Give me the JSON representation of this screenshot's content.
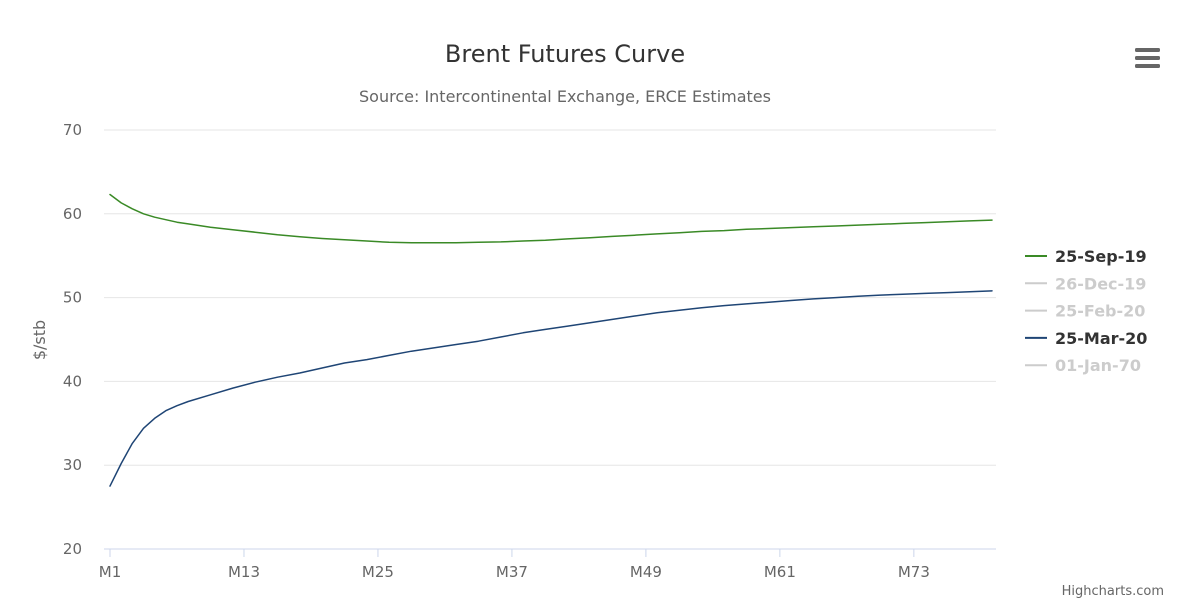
{
  "chart_data": {
    "type": "line",
    "title": "Brent Futures Curve",
    "subtitle": "Source: Intercontinental Exchange, ERCE Estimates",
    "xlabel": "",
    "ylabel": "$/stb",
    "x_tick_labels": [
      "M1",
      "M13",
      "M25",
      "M37",
      "M49",
      "M61",
      "M73"
    ],
    "x_range": [
      1,
      80
    ],
    "ylim": [
      20,
      70
    ],
    "y_ticks": [
      20,
      30,
      40,
      50,
      60,
      70
    ],
    "grid": true,
    "legend_position": "right",
    "series": [
      {
        "name": "25-Sep-19",
        "color": "#3a8a26",
        "visible": true,
        "x": [
          1,
          2,
          3,
          4,
          5,
          6,
          7,
          8,
          10,
          12,
          14,
          16,
          18,
          20,
          22,
          24,
          26,
          28,
          30,
          32,
          34,
          36,
          38,
          40,
          42,
          44,
          46,
          48,
          50,
          52,
          54,
          56,
          58,
          60,
          62,
          64,
          66,
          68,
          70,
          72,
          74,
          76,
          78,
          80
        ],
        "values": [
          62.3,
          61.3,
          60.6,
          60.0,
          59.6,
          59.3,
          59.0,
          58.8,
          58.4,
          58.1,
          57.8,
          57.5,
          57.25,
          57.05,
          56.9,
          56.75,
          56.6,
          56.55,
          56.55,
          56.55,
          56.6,
          56.65,
          56.75,
          56.85,
          57.0,
          57.15,
          57.3,
          57.45,
          57.6,
          57.75,
          57.9,
          58.0,
          58.15,
          58.25,
          58.35,
          58.45,
          58.55,
          58.65,
          58.75,
          58.85,
          58.95,
          59.05,
          59.15,
          59.25
        ]
      },
      {
        "name": "26-Dec-19",
        "color": "#cccccc",
        "visible": false
      },
      {
        "name": "25-Feb-20",
        "color": "#cccccc",
        "visible": false
      },
      {
        "name": "25-Mar-20",
        "color": "#1f4575",
        "visible": true,
        "x": [
          1,
          2,
          3,
          4,
          5,
          6,
          7,
          8,
          10,
          12,
          14,
          16,
          18,
          20,
          22,
          24,
          26,
          28,
          30,
          32,
          34,
          36,
          38,
          40,
          42,
          44,
          46,
          48,
          50,
          52,
          54,
          56,
          58,
          60,
          62,
          64,
          66,
          68,
          70,
          72,
          74,
          76,
          78,
          80
        ],
        "values": [
          27.5,
          30.2,
          32.6,
          34.4,
          35.6,
          36.5,
          37.1,
          37.6,
          38.4,
          39.2,
          39.9,
          40.5,
          41.0,
          41.6,
          42.2,
          42.6,
          43.1,
          43.6,
          44.0,
          44.4,
          44.8,
          45.3,
          45.8,
          46.2,
          46.6,
          47.0,
          47.4,
          47.8,
          48.2,
          48.5,
          48.8,
          49.05,
          49.25,
          49.45,
          49.65,
          49.85,
          50.0,
          50.15,
          50.3,
          50.4,
          50.5,
          50.6,
          50.7,
          50.8
        ]
      },
      {
        "name": "01-Jan-70",
        "color": "#cccccc",
        "visible": false
      }
    ]
  },
  "credits": "Highcharts.com",
  "menu_icon": "hamburger-menu-icon",
  "colors": {
    "grid": "#e6e6e6",
    "axis_line": "#ccd6eb",
    "axis_text": "#666666",
    "title": "#333333"
  }
}
